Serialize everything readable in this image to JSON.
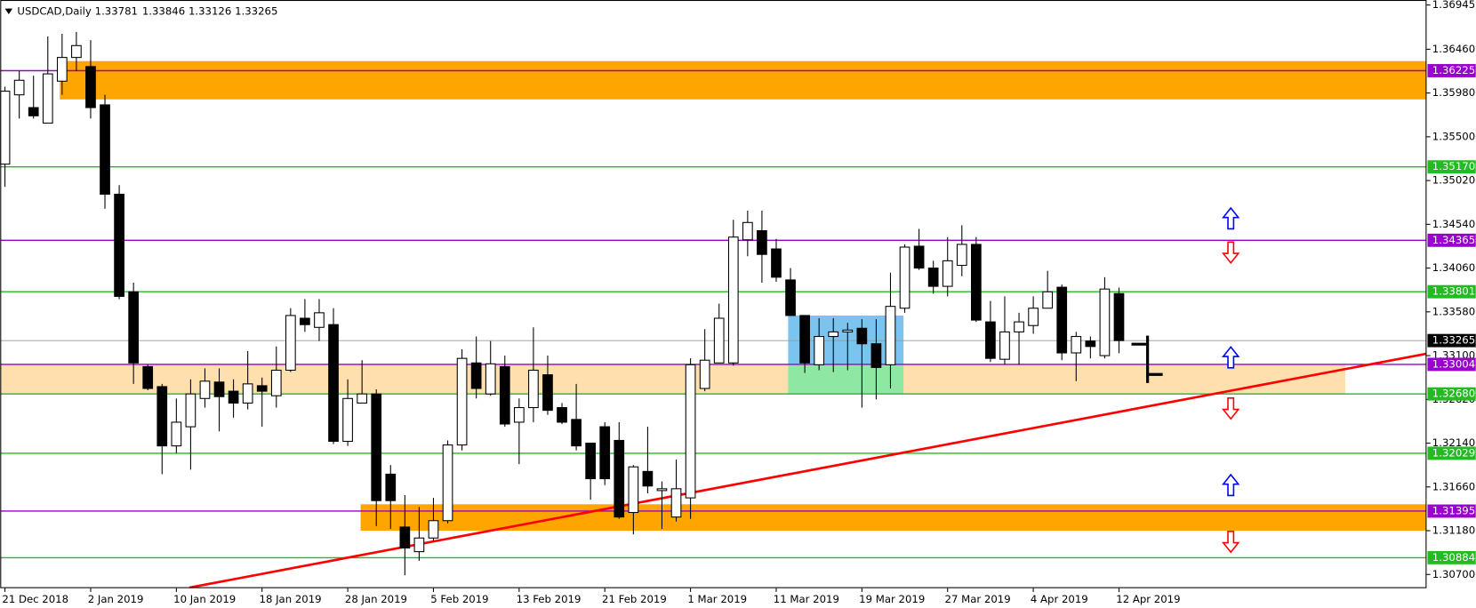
{
  "chart_data": {
    "type": "candlestick",
    "title": "USDCAD,Daily",
    "categories": [
      "21 Dec 2018",
      null,
      null,
      null,
      null,
      null,
      "2 Jan 2019",
      null,
      null,
      null,
      null,
      null,
      "10 Jan 2019",
      null,
      null,
      null,
      null,
      null,
      "18 Jan 2019",
      null,
      null,
      null,
      null,
      null,
      "28 Jan 2019",
      null,
      null,
      null,
      null,
      null,
      "5 Feb 2019",
      null,
      null,
      null,
      null,
      null,
      "13 Feb 2019",
      null,
      null,
      null,
      null,
      null,
      "21 Feb 2019",
      null,
      null,
      null,
      null,
      null,
      "1 Mar 2019",
      null,
      null,
      null,
      null,
      null,
      "11 Mar 2019",
      null,
      null,
      null,
      null,
      null,
      "19 Mar 2019",
      null,
      null,
      null,
      null,
      null,
      "27 Mar 2019",
      null,
      null,
      null,
      null,
      null,
      "4 Apr 2019",
      null,
      null,
      null,
      null,
      null,
      "12 Apr 2019"
    ],
    "open": [
      1.352,
      1.3596,
      1.3582,
      1.3565,
      1.3611,
      1.3637,
      1.3627,
      1.3585,
      1.3487,
      1.338,
      1.3298,
      1.3276,
      1.3211,
      1.3232,
      1.3263,
      1.3281,
      1.3271,
      1.3258,
      1.3277,
      1.3266,
      1.3294,
      1.3351,
      1.3341,
      1.3344,
      1.3216,
      1.3258,
      1.3268,
      1.318,
      1.3122,
      1.3095,
      1.311,
      1.3129,
      1.3212,
      1.3302,
      1.3268,
      1.3298,
      1.3237,
      1.3253,
      1.3289,
      1.3253,
      1.324,
      1.3214,
      1.3232,
      1.3217,
      1.3138,
      1.3183,
      1.3162,
      1.3133,
      1.3154,
      1.3274,
      1.3302,
      1.3302,
      1.3437,
      1.3447,
      1.3427,
      1.3393,
      1.3354,
      1.33,
      1.3331,
      1.3336,
      1.334,
      1.3323,
      1.33,
      1.3362,
      1.343,
      1.3406,
      1.3386,
      1.3409,
      1.3432,
      1.3347,
      1.3306,
      1.3336,
      1.3343,
      1.3362,
      1.3385,
      1.3313,
      1.3326,
      1.331,
      1.33781
    ],
    "high": [
      1.3605,
      1.3622,
      1.3617,
      1.366,
      1.3663,
      1.3665,
      1.3656,
      1.3596,
      1.3497,
      1.339,
      1.33,
      1.3279,
      1.3263,
      1.3284,
      1.3296,
      1.3296,
      1.3284,
      1.3315,
      1.3286,
      1.332,
      1.3362,
      1.3372,
      1.3372,
      1.3362,
      1.3284,
      1.3305,
      1.3273,
      1.319,
      1.3157,
      1.3144,
      1.3154,
      1.3217,
      1.3317,
      1.3331,
      1.3326,
      1.331,
      1.3263,
      1.3341,
      1.331,
      1.3258,
      1.3279,
      1.3214,
      1.3237,
      1.3237,
      1.319,
      1.3232,
      1.3172,
      1.3196,
      1.3307,
      1.3339,
      1.3367,
      1.3459,
      1.3469,
      1.3469,
      1.3438,
      1.3406,
      1.3354,
      1.3351,
      1.3351,
      1.3346,
      1.335,
      1.335,
      1.3401,
      1.3432,
      1.3449,
      1.3414,
      1.344,
      1.3453,
      1.344,
      1.337,
      1.3375,
      1.3357,
      1.3375,
      1.3403,
      1.3388,
      1.3336,
      1.3331,
      1.3396,
      1.33846
    ],
    "low": [
      1.3495,
      1.357,
      1.357,
      1.3565,
      1.3596,
      1.3622,
      1.357,
      1.3471,
      1.3372,
      1.3279,
      1.3272,
      1.318,
      1.3203,
      1.3185,
      1.3253,
      1.3227,
      1.3242,
      1.3251,
      1.3232,
      1.3253,
      1.3292,
      1.3336,
      1.3326,
      1.3213,
      1.3211,
      1.3258,
      1.3123,
      1.312,
      1.3069,
      1.3085,
      1.3107,
      1.3126,
      1.3206,
      1.3263,
      1.3266,
      1.3232,
      1.3191,
      1.3237,
      1.3245,
      1.3235,
      1.3206,
      1.3152,
      1.3168,
      1.3131,
      1.3114,
      1.3159,
      1.312,
      1.3128,
      1.3131,
      1.3271,
      1.3302,
      1.3299,
      1.3419,
      1.339,
      1.3391,
      1.3354,
      1.3291,
      1.3294,
      1.3292,
      1.3294,
      1.3253,
      1.3262,
      1.3274,
      1.3357,
      1.3404,
      1.3378,
      1.3375,
      1.3397,
      1.3347,
      1.3303,
      1.33,
      1.33,
      1.3334,
      1.3362,
      1.3305,
      1.3282,
      1.3307,
      1.3307,
      1.33126
    ],
    "close": [
      1.36,
      1.3612,
      1.3573,
      1.3619,
      1.3637,
      1.365,
      1.3582,
      1.3487,
      1.3375,
      1.3302,
      1.3274,
      1.3211,
      1.3237,
      1.3268,
      1.3282,
      1.3265,
      1.3258,
      1.3279,
      1.3271,
      1.3294,
      1.3354,
      1.3344,
      1.3357,
      1.3216,
      1.3263,
      1.3268,
      1.3151,
      1.3151,
      1.3099,
      1.311,
      1.3129,
      1.3212,
      1.3307,
      1.3274,
      1.3301,
      1.3235,
      1.3253,
      1.3294,
      1.325,
      1.3237,
      1.3211,
      1.3175,
      1.3175,
      1.3133,
      1.3188,
      1.3167,
      1.3164,
      1.3164,
      1.33,
      1.3305,
      1.3351,
      1.344,
      1.3456,
      1.3421,
      1.3396,
      1.3354,
      1.3302,
      1.3331,
      1.3336,
      1.3338,
      1.3323,
      1.3297,
      1.3364,
      1.3429,
      1.3406,
      1.3386,
      1.3414,
      1.3432,
      1.3349,
      1.3307,
      1.3336,
      1.3347,
      1.3362,
      1.338,
      1.3313,
      1.3331,
      1.332,
      1.3383,
      1.33265
    ],
    "up_color": "#ffffff",
    "down_color": "#000000",
    "ylim": [
      1.3055,
      1.37
    ],
    "yticks": [
      1.36945,
      {
        "value": 1.3646,
        "label": "1.36460"
      },
      {
        "value": 1.3598,
        "label": "1.35980"
      },
      {
        "value": 1.355,
        "label": "1.35500"
      },
      {
        "value": 1.3502,
        "label": "1.35020"
      },
      {
        "value": 1.3454,
        "label": "1.34540"
      },
      {
        "value": 1.3406,
        "label": "1.34060"
      },
      {
        "value": 1.3358,
        "label": "1.33580"
      },
      {
        "value": 1.331,
        "label": "1.33100"
      },
      {
        "value": 1.3262,
        "label": "1.32620"
      },
      {
        "value": 1.3214,
        "label": "1.32140"
      },
      {
        "value": 1.3166,
        "label": "1.31660"
      },
      {
        "value": 1.3118,
        "label": "1.31180"
      },
      {
        "value": 1.307,
        "label": "1.30700"
      }
    ],
    "levels": [
      1.36225,
      {
        "value": 1.3517,
        "label": "1.35170"
      },
      1.34365,
      1.33801,
      1.33004,
      {
        "value": 1.3268,
        "label": "1.32680"
      },
      1.32029,
      1.31395,
      1.30884
    ],
    "level_colors": [
      "#9900cc",
      "#22bb22",
      "#9900cc",
      "#22bb22",
      "#9900cc",
      "#22bb22",
      "#22bb22",
      "#9900cc",
      "#22bb22"
    ],
    "zones": [
      {
        "ylim": [
          1.3591,
          1.3633
        ],
        "color": "#ffa500"
      },
      {
        "ylim": [
          1.3118,
          1.3147
        ],
        "color": "#ffa500"
      },
      {
        "ylim": [
          1.3268,
          1.33004
        ],
        "color": "#ffdfae"
      },
      {
        "ylim": [
          1.33004,
          1.3354
        ],
        "color": "#7cc4f0"
      },
      {
        "ylim": [
          1.3268,
          1.33004
        ],
        "color": "#8ee8a4"
      }
    ],
    "trendline": {
      "y": [
        1.30556,
        1.33121
      ],
      "color": "#ff0000"
    }
  }
}
